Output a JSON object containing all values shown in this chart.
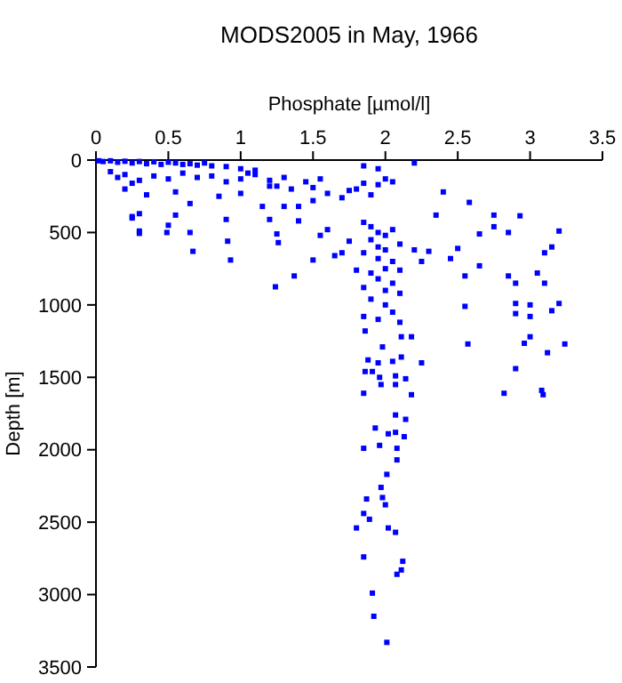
{
  "chart_data": {
    "type": "scatter",
    "title": "MODS2005 in May, 1966",
    "xlabel": "Phosphate [µmol/l]",
    "ylabel": "Depth [m]",
    "xlim": [
      0,
      3.5
    ],
    "ylim": [
      3500,
      0
    ],
    "xticks": [
      0,
      0.5,
      1,
      1.5,
      2,
      2.5,
      3,
      3.5
    ],
    "yticks": [
      0,
      500,
      1000,
      1500,
      2000,
      2500,
      3000,
      3500
    ],
    "marker": "square",
    "grid": false,
    "series": [
      {
        "color": "#0000ff",
        "x": [
          0.02,
          0.05,
          0.1,
          0.15,
          0.2,
          0.25,
          0.3,
          0.35,
          0.4,
          0.45,
          0.5,
          0.55,
          0.6,
          0.65,
          0.7,
          0.75,
          0.8,
          0.9,
          1.0,
          1.1,
          1.05,
          0.1,
          0.15,
          0.2,
          0.3,
          0.25,
          0.4,
          0.5,
          0.6,
          0.7,
          0.8,
          0.9,
          1.0,
          1.1,
          1.2,
          1.3,
          1.25,
          0.2,
          0.35,
          0.55,
          0.65,
          0.85,
          1.0,
          1.2,
          1.35,
          1.45,
          1.5,
          1.6,
          1.7,
          1.75,
          1.85,
          1.5,
          1.3,
          1.15,
          1.4,
          0.25,
          0.3,
          0.5,
          0.55,
          0.65,
          0.3,
          0.9,
          1.25,
          1.4,
          1.2,
          1.8,
          1.9,
          1.95,
          2.0,
          1.85,
          2.2,
          1.95,
          2.05,
          1.55,
          2.4,
          2.35,
          2.58,
          2.93,
          2.75,
          2.75,
          2.85,
          3.2,
          2.65,
          2.5,
          3.15,
          3.1,
          2.45,
          2.65,
          2.55,
          2.85,
          3.05,
          3.1,
          2.9,
          2.55,
          2.9,
          3.0,
          3.2,
          3.15,
          2.9,
          3.0,
          2.57,
          2.96,
          3.24,
          3.12,
          2.9,
          2.82,
          3.08,
          3.09,
          3.0,
          0.67,
          0.3,
          0.49,
          0.91,
          0.93,
          1.26,
          1.24,
          1.37,
          0.25,
          1.85,
          1.9,
          1.95,
          2.0,
          2.05,
          1.9,
          1.95,
          2.0,
          2.1,
          1.85,
          1.95,
          2.05,
          2.0,
          1.9,
          2.1,
          1.95,
          2.05,
          1.85,
          2.0,
          2.1,
          1.9,
          2.0,
          2.05,
          1.85,
          1.95,
          2.1,
          1.7,
          1.75,
          1.6,
          1.55,
          1.8,
          2.2,
          2.25,
          2.3,
          1.5,
          1.65,
          1.86,
          1.98,
          2.11,
          2.18,
          1.88,
          1.95,
          2.05,
          2.11,
          2.25,
          1.86,
          1.91,
          1.96,
          2.07,
          2.14,
          1.85,
          1.97,
          2.07,
          2.18,
          2.07,
          2.14,
          1.93,
          2.02,
          2.07,
          2.13,
          1.85,
          1.96,
          2.08,
          2.08,
          2.01,
          1.97,
          1.87,
          1.98,
          2.0,
          1.85,
          1.89,
          1.8,
          2.02,
          2.07,
          1.85,
          2.12,
          2.11,
          2.08,
          1.91,
          1.92,
          2.01
        ],
        "values": [
          5,
          10,
          5,
          15,
          8,
          20,
          10,
          25,
          12,
          30,
          15,
          20,
          30,
          25,
          35,
          20,
          40,
          45,
          60,
          70,
          90,
          80,
          120,
          100,
          140,
          160,
          110,
          130,
          90,
          120,
          110,
          150,
          130,
          100,
          140,
          120,
          180,
          200,
          240,
          220,
          300,
          250,
          230,
          180,
          200,
          150,
          190,
          230,
          260,
          210,
          160,
          280,
          320,
          320,
          320,
          390,
          370,
          450,
          380,
          500,
          490,
          410,
          510,
          420,
          410,
          200,
          240,
          170,
          130,
          40,
          20,
          60,
          150,
          130,
          220,
          380,
          292,
          385,
          380,
          460,
          500,
          490,
          510,
          610,
          600,
          640,
          680,
          730,
          800,
          800,
          780,
          850,
          850,
          1010,
          990,
          1000,
          990,
          1040,
          1060,
          1080,
          1270,
          1265,
          1270,
          1330,
          1440,
          1610,
          1590,
          1620,
          1220,
          630,
          506,
          500,
          560,
          690,
          570,
          875,
          800,
          400,
          430,
          460,
          500,
          520,
          480,
          550,
          600,
          620,
          580,
          640,
          680,
          700,
          750,
          780,
          760,
          820,
          850,
          880,
          900,
          920,
          960,
          1000,
          1050,
          1080,
          1100,
          1120,
          640,
          560,
          480,
          520,
          760,
          620,
          700,
          630,
          690,
          660,
          1180,
          1290,
          1220,
          1220,
          1380,
          1400,
          1390,
          1360,
          1400,
          1460,
          1460,
          1500,
          1490,
          1510,
          1610,
          1550,
          1550,
          1620,
          1760,
          1790,
          1850,
          1890,
          1880,
          1910,
          1990,
          1970,
          1990,
          2070,
          2170,
          2260,
          2340,
          2330,
          2380,
          2440,
          2480,
          2540,
          2540,
          2570,
          2740,
          2770,
          2830,
          2860,
          2990,
          3150,
          3330
        ]
      }
    ]
  }
}
